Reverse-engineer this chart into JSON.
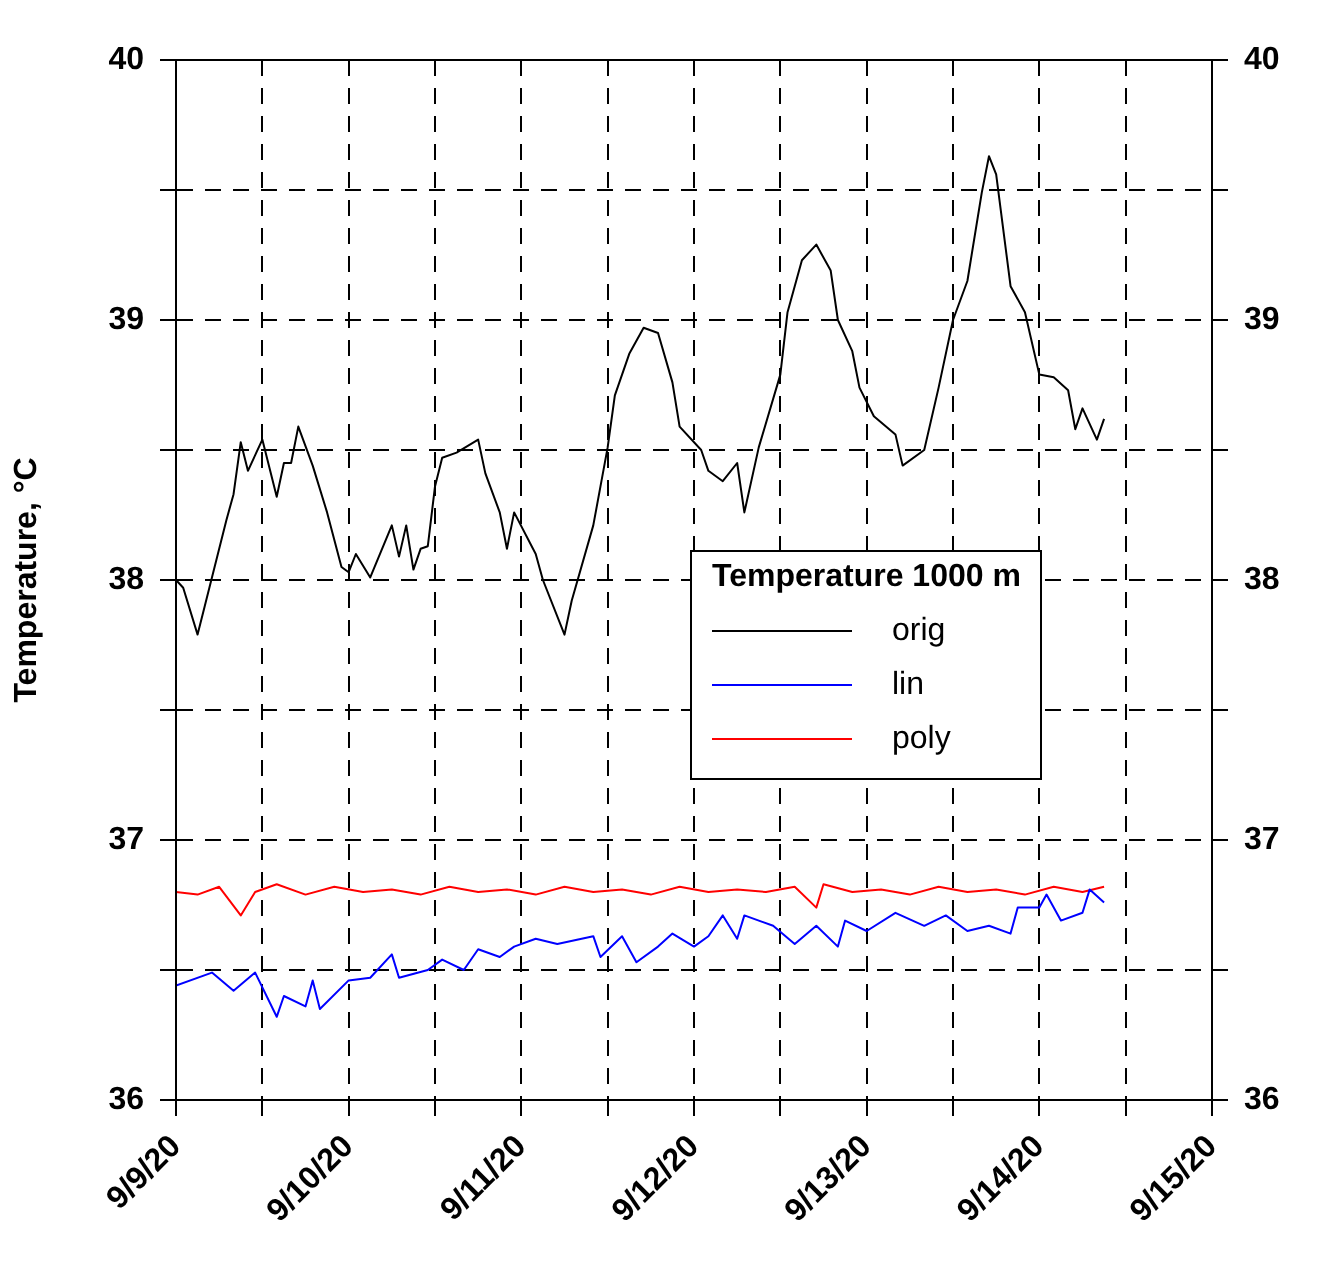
{
  "chart_data": {
    "type": "line",
    "ylabel": "Temperature, °C",
    "legend_title": "Temperature 1000 m",
    "legend": "right",
    "grid": true,
    "xlim": [
      "--09-09T00:00",
      "--09-15T00:00"
    ],
    "xticks": [
      {
        "value": "--09-09T00:00",
        "label": "9/9/20"
      },
      {
        "value": "--09-09T12:00",
        "label": null
      },
      {
        "value": "--09-10T00:00",
        "label": "9/10/20"
      },
      {
        "value": "--09-10T12:00",
        "label": null
      },
      {
        "value": "--09-11T00:00",
        "label": "9/11/20"
      },
      {
        "value": "--09-11T12:00",
        "label": null
      },
      {
        "value": "--09-12T00:00",
        "label": "9/12/20"
      },
      {
        "value": "--09-12T12:00",
        "label": null
      },
      {
        "value": "--09-13T00:00",
        "label": "9/13/20"
      },
      {
        "value": "--09-13T12:00",
        "label": null
      },
      {
        "value": "--09-14T00:00",
        "label": "9/14/20"
      },
      {
        "value": "--09-14T12:00",
        "label": null
      },
      {
        "value": "--09-15T00:00",
        "label": "9/15/20"
      }
    ],
    "ylim": [
      36,
      40
    ],
    "yticks": [
      36,
      {
        "value": 36.5,
        "label": null
      },
      37,
      {
        "value": 37.5,
        "label": null
      },
      38,
      {
        "value": 38.5,
        "label": null
      },
      39,
      {
        "value": 39.5,
        "label": null
      },
      40
    ],
    "y2lim": [
      36,
      40
    ],
    "y2ticks": [
      36,
      {
        "value": 36.5,
        "label": null
      },
      37,
      {
        "value": 37.5,
        "label": null
      },
      38,
      {
        "value": 38.5,
        "label": null
      },
      39,
      {
        "value": 39.5,
        "label": null
      },
      40
    ],
    "series": [
      {
        "name": "orig",
        "color": "#000000",
        "x": [
          "--09-09T00:00",
          "--09-09T01:00",
          "--09-09T03:00",
          "--09-09T04:00",
          "--09-09T07:00",
          "--09-09T08:00",
          "--09-09T09:00",
          "--09-09T10:00",
          "--09-09T12:00",
          "--09-09T14:00",
          "--09-09T15:00",
          "--09-09T16:00",
          "--09-09T17:00",
          "--09-09T19:00",
          "--09-09T21:00",
          "--09-09T23:00",
          "--09-10T00:00",
          "--09-10T01:00",
          "--09-10T03:00",
          "--09-10T06:00",
          "--09-10T07:00",
          "--09-10T08:00",
          "--09-10T09:00",
          "--09-10T10:00",
          "--09-10T11:00",
          "--09-10T12:00",
          "--09-10T13:00",
          "--09-10T15:00",
          "--09-10T18:00",
          "--09-10T19:00",
          "--09-10T21:00",
          "--09-10T22:00",
          "--09-10T23:00",
          "--09-11T02:00",
          "--09-11T03:00",
          "--09-11T06:00",
          "--09-11T07:00",
          "--09-11T10:00",
          "--09-11T11:00",
          "--09-11T12:00",
          "--09-11T13:00",
          "--09-11T15:00",
          "--09-11T17:00",
          "--09-11T19:00",
          "--09-11T21:00",
          "--09-11T22:00",
          "--09-12T01:00",
          "--09-12T02:00",
          "--09-12T04:00",
          "--09-12T06:00",
          "--09-12T07:00",
          "--09-12T09:00",
          "--09-12T12:00",
          "--09-12T13:00",
          "--09-12T15:00",
          "--09-12T17:00",
          "--09-12T19:00",
          "--09-12T20:00",
          "--09-12T22:00",
          "--09-12T23:00",
          "--09-13T01:00",
          "--09-13T04:00",
          "--09-13T05:00",
          "--09-13T08:00",
          "--09-13T10:00",
          "--09-13T12:00",
          "--09-13T14:00",
          "--09-13T16:00",
          "--09-13T17:00",
          "--09-13T18:00",
          "--09-13T20:00",
          "--09-13T22:00",
          "--09-14T00:00",
          "--09-14T02:00",
          "--09-14T04:00",
          "--09-14T05:00",
          "--09-14T06:00",
          "--09-14T08:00",
          "--09-14T09:00"
        ],
        "values": [
          38.0,
          37.97,
          37.79,
          37.9,
          38.23,
          38.33,
          38.53,
          38.42,
          38.54,
          38.32,
          38.45,
          38.45,
          38.59,
          38.44,
          38.26,
          38.05,
          38.03,
          38.1,
          38.01,
          38.21,
          38.09,
          38.21,
          38.04,
          38.12,
          38.13,
          38.36,
          38.47,
          38.49,
          38.54,
          38.41,
          38.26,
          38.12,
          38.26,
          38.1,
          38.0,
          37.79,
          37.92,
          38.21,
          38.36,
          38.51,
          38.71,
          38.87,
          38.97,
          38.95,
          38.76,
          38.59,
          38.5,
          38.42,
          38.38,
          38.45,
          38.26,
          38.51,
          38.79,
          39.03,
          39.23,
          39.29,
          39.19,
          39.0,
          38.88,
          38.74,
          38.63,
          38.56,
          38.44,
          38.5,
          38.74,
          39.0,
          39.15,
          39.49,
          39.63,
          39.56,
          39.13,
          39.03,
          38.79,
          38.78,
          38.73,
          38.58,
          38.66,
          38.54,
          38.62
        ]
      },
      {
        "name": "lin",
        "color": "#0000ff",
        "x": [
          "--09-09T00:00",
          "--09-09T05:00",
          "--09-09T08:00",
          "--09-09T11:00",
          "--09-09T14:00",
          "--09-09T15:00",
          "--09-09T18:00",
          "--09-09T19:00",
          "--09-09T20:00",
          "--09-10T00:00",
          "--09-10T03:00",
          "--09-10T06:00",
          "--09-10T07:00",
          "--09-10T11:00",
          "--09-10T13:00",
          "--09-10T16:00",
          "--09-10T18:00",
          "--09-10T21:00",
          "--09-10T23:00",
          "--09-11T02:00",
          "--09-11T05:00",
          "--09-11T10:00",
          "--09-11T11:00",
          "--09-11T14:00",
          "--09-11T16:00",
          "--09-11T19:00",
          "--09-11T21:00",
          "--09-12T00:00",
          "--09-12T02:00",
          "--09-12T04:00",
          "--09-12T06:00",
          "--09-12T07:00",
          "--09-12T11:00",
          "--09-12T14:00",
          "--09-12T17:00",
          "--09-12T20:00",
          "--09-12T21:00",
          "--09-13T00:00",
          "--09-13T04:00",
          "--09-13T08:00",
          "--09-13T11:00",
          "--09-13T14:00",
          "--09-13T17:00",
          "--09-13T20:00",
          "--09-13T21:00",
          "--09-14T00:00",
          "--09-14T01:00",
          "--09-14T03:00",
          "--09-14T06:00",
          "--09-14T07:00",
          "--09-14T09:00"
        ],
        "values": [
          36.44,
          36.49,
          36.42,
          36.49,
          36.32,
          36.4,
          36.36,
          36.46,
          36.35,
          36.46,
          36.47,
          36.56,
          36.47,
          36.5,
          36.54,
          36.5,
          36.58,
          36.55,
          36.59,
          36.62,
          36.6,
          36.63,
          36.55,
          36.63,
          36.53,
          36.59,
          36.64,
          36.59,
          36.63,
          36.71,
          36.62,
          36.71,
          36.67,
          36.6,
          36.67,
          36.59,
          36.69,
          36.65,
          36.72,
          36.67,
          36.71,
          36.65,
          36.67,
          36.64,
          36.74,
          36.74,
          36.79,
          36.69,
          36.72,
          36.81,
          36.76
        ]
      },
      {
        "name": "poly",
        "color": "#ff0000",
        "x": [
          "--09-09T00:00",
          "--09-09T03:00",
          "--09-09T06:00",
          "--09-09T09:00",
          "--09-09T11:00",
          "--09-09T14:00",
          "--09-09T18:00",
          "--09-09T22:00",
          "--09-10T02:00",
          "--09-10T06:00",
          "--09-10T10:00",
          "--09-10T14:00",
          "--09-10T18:00",
          "--09-10T22:00",
          "--09-11T02:00",
          "--09-11T06:00",
          "--09-11T10:00",
          "--09-11T14:00",
          "--09-11T18:00",
          "--09-11T22:00",
          "--09-12T02:00",
          "--09-12T06:00",
          "--09-12T10:00",
          "--09-12T14:00",
          "--09-12T17:00",
          "--09-12T18:00",
          "--09-12T22:00",
          "--09-13T02:00",
          "--09-13T06:00",
          "--09-13T10:00",
          "--09-13T14:00",
          "--09-13T18:00",
          "--09-13T22:00",
          "--09-14T02:00",
          "--09-14T06:00",
          "--09-14T09:00"
        ],
        "values": [
          36.8,
          36.79,
          36.82,
          36.71,
          36.8,
          36.83,
          36.79,
          36.82,
          36.8,
          36.81,
          36.79,
          36.82,
          36.8,
          36.81,
          36.79,
          36.82,
          36.8,
          36.81,
          36.79,
          36.82,
          36.8,
          36.81,
          36.8,
          36.82,
          36.74,
          36.83,
          36.8,
          36.81,
          36.79,
          36.82,
          36.8,
          36.81,
          36.79,
          36.82,
          36.8,
          36.82
        ]
      }
    ]
  }
}
